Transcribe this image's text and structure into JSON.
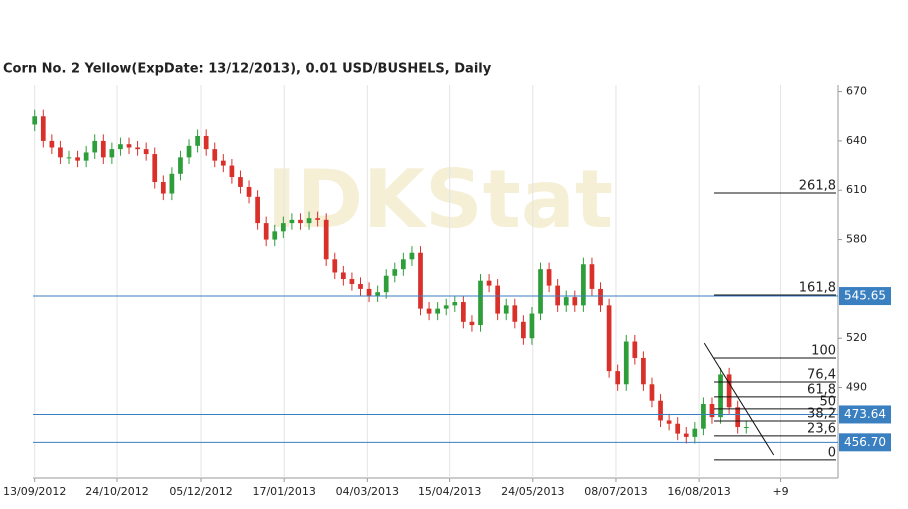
{
  "chart_data": {
    "type": "candlestick",
    "title": "Corn  No. 2 Yellow(ExpDate: 13/12/2013), 0.01 USD/BUSHELS, Daily",
    "watermark": "IDKStat",
    "up_color": "#2e9e3a",
    "down_color": "#d9302a",
    "open": [
      650,
      655,
      640,
      636,
      630,
      630,
      628,
      633,
      640,
      630,
      635,
      638,
      636,
      635,
      632,
      615,
      608,
      620,
      630,
      637,
      643,
      635,
      628,
      625,
      618,
      612,
      606,
      590,
      580,
      585,
      590,
      592,
      590,
      593,
      592,
      568,
      560,
      556,
      553,
      550,
      546,
      548,
      558,
      562,
      568,
      572,
      538,
      535,
      538,
      540,
      542,
      530,
      528,
      555,
      552,
      535,
      540,
      530,
      520,
      535,
      562,
      552,
      540,
      545,
      540,
      565,
      550,
      540,
      500,
      492,
      518,
      508,
      492,
      482,
      470,
      468,
      462,
      460,
      465,
      480,
      472,
      498,
      478,
      466
    ],
    "high": [
      659,
      659,
      644,
      640,
      634,
      634,
      637,
      644,
      644,
      639,
      642,
      642,
      640,
      639,
      636,
      619,
      624,
      634,
      641,
      647,
      647,
      639,
      632,
      629,
      622,
      616,
      610,
      594,
      589,
      594,
      596,
      596,
      597,
      597,
      596,
      572,
      564,
      560,
      557,
      554,
      552,
      562,
      566,
      572,
      576,
      576,
      542,
      542,
      544,
      546,
      546,
      534,
      559,
      559,
      556,
      544,
      544,
      534,
      539,
      566,
      566,
      556,
      549,
      549,
      569,
      569,
      554,
      544,
      504,
      522,
      522,
      512,
      496,
      486,
      474,
      472,
      466,
      469,
      484,
      484,
      502,
      502,
      482,
      470
    ],
    "low": [
      646,
      636,
      632,
      626,
      626,
      624,
      624,
      629,
      626,
      626,
      631,
      632,
      631,
      628,
      611,
      604,
      604,
      616,
      626,
      633,
      631,
      624,
      621,
      614,
      608,
      602,
      586,
      576,
      576,
      581,
      586,
      586,
      586,
      588,
      564,
      556,
      552,
      549,
      546,
      542,
      542,
      544,
      554,
      558,
      564,
      534,
      531,
      531,
      534,
      536,
      526,
      524,
      524,
      548,
      531,
      531,
      526,
      516,
      516,
      531,
      548,
      536,
      536,
      536,
      536,
      546,
      536,
      496,
      488,
      488,
      504,
      488,
      478,
      466,
      464,
      458,
      456,
      456,
      461,
      468,
      468,
      474,
      462,
      462
    ],
    "close": [
      655,
      640,
      636,
      630,
      630,
      628,
      633,
      640,
      630,
      635,
      638,
      636,
      635,
      632,
      615,
      608,
      620,
      630,
      637,
      643,
      635,
      628,
      625,
      618,
      612,
      606,
      590,
      580,
      585,
      590,
      592,
      590,
      593,
      592,
      568,
      560,
      556,
      553,
      550,
      546,
      548,
      558,
      562,
      568,
      572,
      538,
      535,
      538,
      540,
      542,
      530,
      528,
      555,
      552,
      535,
      540,
      530,
      520,
      535,
      562,
      552,
      540,
      545,
      540,
      565,
      550,
      540,
      500,
      492,
      518,
      508,
      492,
      482,
      470,
      468,
      462,
      460,
      465,
      480,
      472,
      498,
      478,
      466,
      466
    ],
    "xlim": [
      -0.2,
      93.7
    ],
    "xticks": [
      {
        "value": 0,
        "label": "13/09/2012"
      },
      {
        "value": 9.6,
        "label": "24/10/2012"
      },
      {
        "value": 19.4,
        "label": "05/12/2012"
      },
      {
        "value": 29.1,
        "label": "17/01/2013"
      },
      {
        "value": 38.8,
        "label": "04/03/2013"
      },
      {
        "value": 48.4,
        "label": "15/04/2013"
      },
      {
        "value": 58.1,
        "label": "24/05/2013"
      },
      {
        "value": 67.8,
        "label": "08/07/2013"
      },
      {
        "value": 77.5,
        "label": "16/08/2013"
      },
      {
        "value": 87,
        "label": "+9"
      }
    ],
    "ylim": [
      435,
      674
    ],
    "yticks": [
      670,
      640,
      610,
      580,
      520,
      490
    ],
    "price_lines": [
      {
        "value": 545.65,
        "label": "545.65"
      },
      {
        "value": 473.64,
        "label": "473.64"
      },
      {
        "value": 456.7,
        "label": "456.70"
      }
    ],
    "price_line_color": "#3a7fc0",
    "fib_range": [
      446,
      508
    ],
    "fib_levels": [
      {
        "value": 0,
        "label": "0"
      },
      {
        "value": 23.6,
        "label": "23,6"
      },
      {
        "value": 38.2,
        "label": "38,2"
      },
      {
        "value": 50,
        "label": "50"
      },
      {
        "value": 61.8,
        "label": "61,8"
      },
      {
        "value": 76.4,
        "label": "76,4"
      },
      {
        "value": 100,
        "label": "100"
      },
      {
        "value": 161.8,
        "label": "161,8"
      },
      {
        "value": 261.8,
        "label": "261,8"
      }
    ],
    "trendline": {
      "x": [
        78.1,
        86.2
      ],
      "y": [
        517,
        449
      ]
    }
  }
}
